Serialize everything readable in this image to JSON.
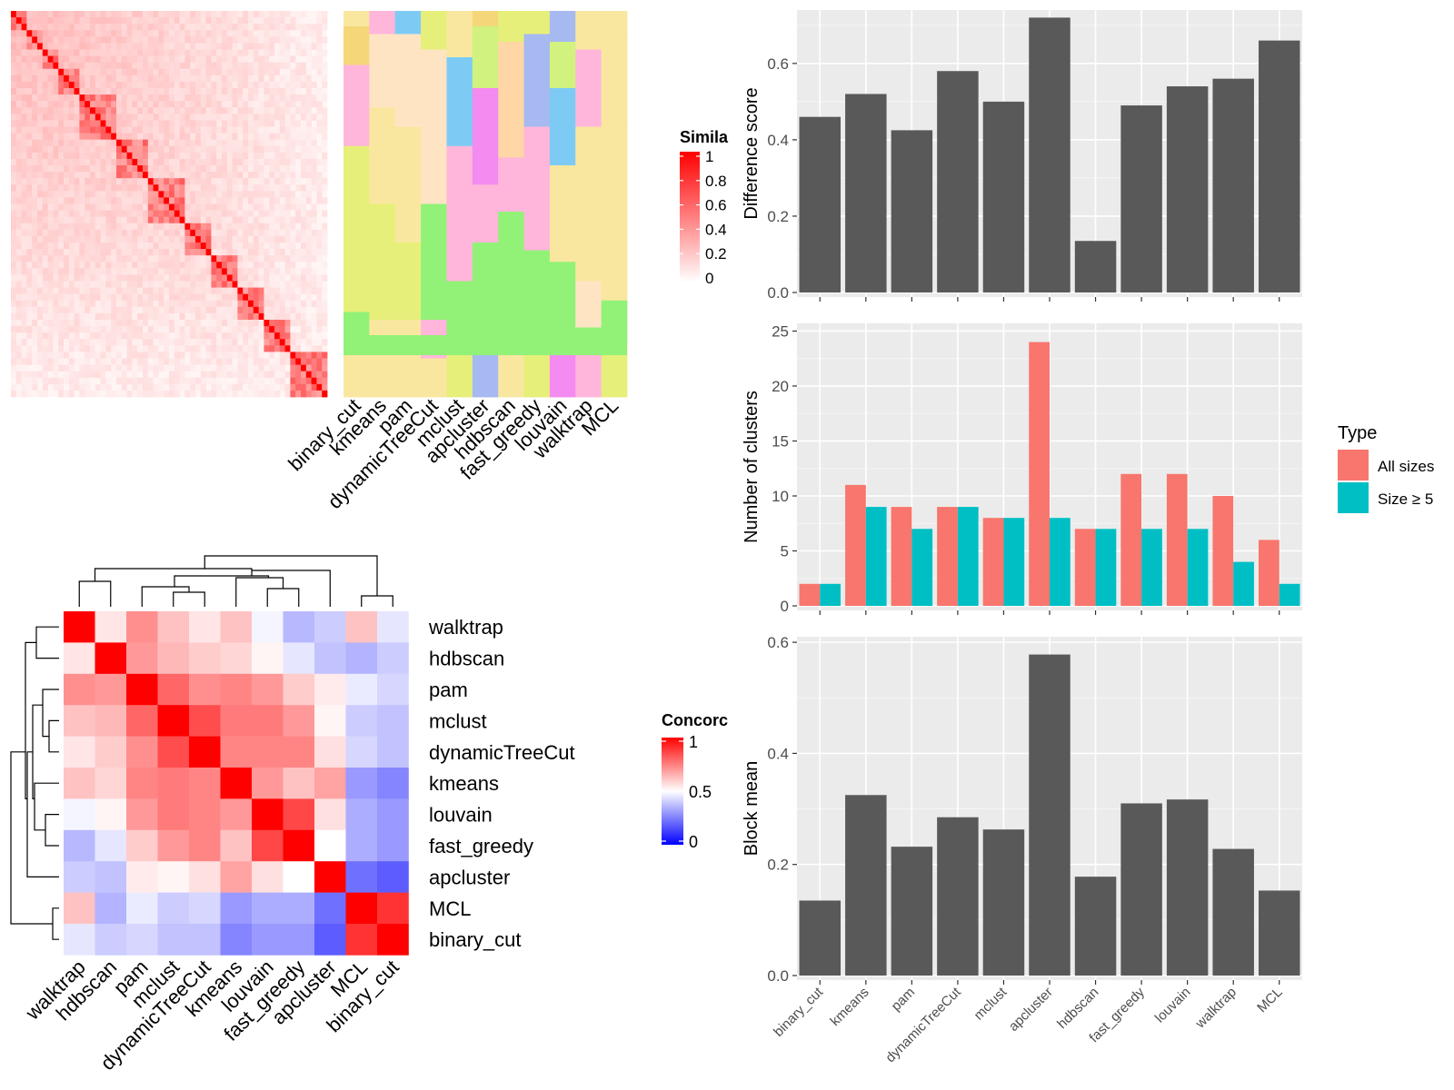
{
  "figure": {
    "similarity_legend_title": "Simila",
    "similarity_legend_ticks": [
      "1",
      "0.8",
      "0.6",
      "0.4",
      "0.2",
      "0"
    ],
    "concordance_legend_title": "Concorc",
    "concordance_legend_ticks": [
      "1",
      "0.5",
      "0"
    ],
    "type_legend_title": "Type",
    "type_legend_entries": [
      "All sizes",
      "Size ≥ 5"
    ]
  },
  "chart_data": [
    {
      "type": "heatmap",
      "title": "",
      "columns": [
        "binary_cut",
        "kmeans",
        "pam",
        "dynamicTreeCut",
        "mclust",
        "apcluster",
        "hdbscan",
        "fast_greedy",
        "louvain",
        "walktrap",
        "MCL"
      ],
      "legend_title": "Simila",
      "legend_range": [
        0,
        1
      ],
      "legend_colors": [
        "#FFFFFF",
        "#FF0000"
      ],
      "note": "term-by-term similarity matrix with cluster-membership annotation columns"
    },
    {
      "type": "heatmap",
      "legend_title": "Concorc",
      "legend_range": [
        0,
        1
      ],
      "legend_colors": [
        "#0000FF",
        "#FFFFFF",
        "#FF0000"
      ],
      "rows": [
        "walktrap",
        "hdbscan",
        "pam",
        "mclust",
        "dynamicTreeCut",
        "kmeans",
        "louvain",
        "fast_greedy",
        "apcluster",
        "MCL",
        "binary_cut"
      ],
      "columns": [
        "walktrap",
        "hdbscan",
        "pam",
        "mclust",
        "dynamicTreeCut",
        "kmeans",
        "louvain",
        "fast_greedy",
        "apcluster",
        "MCL",
        "binary_cut"
      ],
      "values": [
        [
          1.0,
          0.55,
          0.72,
          0.62,
          0.55,
          0.62,
          0.48,
          0.36,
          0.4,
          0.62,
          0.45
        ],
        [
          0.55,
          1.0,
          0.7,
          0.64,
          0.6,
          0.58,
          0.52,
          0.45,
          0.38,
          0.35,
          0.4
        ],
        [
          0.72,
          0.7,
          1.0,
          0.8,
          0.72,
          0.74,
          0.7,
          0.6,
          0.54,
          0.46,
          0.42
        ],
        [
          0.62,
          0.64,
          0.8,
          1.0,
          0.85,
          0.76,
          0.76,
          0.7,
          0.52,
          0.4,
          0.38
        ],
        [
          0.55,
          0.6,
          0.72,
          0.85,
          1.0,
          0.74,
          0.74,
          0.74,
          0.56,
          0.42,
          0.38
        ],
        [
          0.62,
          0.58,
          0.74,
          0.76,
          0.74,
          1.0,
          0.7,
          0.62,
          0.68,
          0.3,
          0.26
        ],
        [
          0.48,
          0.52,
          0.7,
          0.76,
          0.74,
          0.7,
          1.0,
          0.86,
          0.56,
          0.34,
          0.3
        ],
        [
          0.36,
          0.45,
          0.6,
          0.7,
          0.74,
          0.62,
          0.86,
          1.0,
          0.5,
          0.34,
          0.3
        ],
        [
          0.4,
          0.38,
          0.54,
          0.52,
          0.56,
          0.68,
          0.56,
          0.5,
          1.0,
          0.22,
          0.18
        ],
        [
          0.62,
          0.35,
          0.46,
          0.4,
          0.42,
          0.3,
          0.34,
          0.34,
          0.22,
          1.0,
          0.9
        ],
        [
          0.45,
          0.4,
          0.42,
          0.38,
          0.38,
          0.26,
          0.3,
          0.3,
          0.18,
          0.9,
          1.0
        ]
      ]
    },
    {
      "type": "bar",
      "categories": [
        "binary_cut",
        "kmeans",
        "pam",
        "dynamicTreeCut",
        "mclust",
        "apcluster",
        "hdbscan",
        "fast_greedy",
        "louvain",
        "walktrap",
        "MCL"
      ],
      "ylabel": "Difference score",
      "xlabel": "",
      "values": [
        0.46,
        0.52,
        0.425,
        0.58,
        0.5,
        0.72,
        0.135,
        0.49,
        0.54,
        0.56,
        0.66
      ],
      "ylim": [
        0,
        0.74
      ],
      "yticks": [
        "0.0",
        "0.2",
        "0.4",
        "0.6"
      ],
      "color": "#595959",
      "grid": true
    },
    {
      "type": "bar",
      "categories": [
        "binary_cut",
        "kmeans",
        "pam",
        "dynamicTreeCut",
        "mclust",
        "apcluster",
        "hdbscan",
        "fast_greedy",
        "louvain",
        "walktrap",
        "MCL"
      ],
      "ylabel": "Number of clusters",
      "xlabel": "",
      "series": [
        {
          "name": "All sizes",
          "color": "#F8766D",
          "values": [
            2,
            11,
            9,
            9,
            8,
            24,
            7,
            12,
            12,
            10,
            6
          ]
        },
        {
          "name": "Size ≥ 5",
          "color": "#00BFC4",
          "values": [
            2,
            9,
            7,
            9,
            8,
            8,
            7,
            7,
            7,
            4,
            2
          ]
        }
      ],
      "ylim": [
        0,
        25.7
      ],
      "yticks": [
        "0",
        "5",
        "10",
        "15",
        "20",
        "25"
      ],
      "legend_title": "Type",
      "legend_position": "right",
      "grid": true
    },
    {
      "type": "bar",
      "categories": [
        "binary_cut",
        "kmeans",
        "pam",
        "dynamicTreeCut",
        "mclust",
        "apcluster",
        "hdbscan",
        "fast_greedy",
        "louvain",
        "walktrap",
        "MCL"
      ],
      "ylabel": "Block mean",
      "xlabel": "",
      "values": [
        0.135,
        0.325,
        0.232,
        0.285,
        0.263,
        0.578,
        0.178,
        0.31,
        0.317,
        0.228,
        0.153
      ],
      "ylim": [
        0,
        0.61
      ],
      "yticks": [
        "0.0",
        "0.2",
        "0.4",
        "0.6"
      ],
      "color": "#595959",
      "grid": true
    }
  ]
}
